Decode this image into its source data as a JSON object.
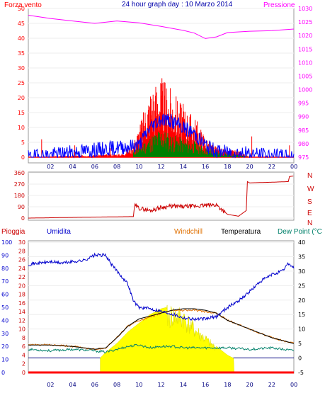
{
  "header": {
    "left_label": "Forza vento",
    "title": "24 hour graph day : 10 Marzo 2014",
    "right_label": "Pressione"
  },
  "colors": {
    "wind": "#ff0000",
    "gust_green": "#008000",
    "gust_blue": "#0000ff",
    "pressure": "#ff00ff",
    "direction": "#cc0000",
    "rain": "#ff0000",
    "humidity": "#0000cc",
    "windchill": "#e07000",
    "temperature": "#000000",
    "dewpoint": "#00806a",
    "solar": "#ffff00"
  },
  "bottom_labels": {
    "rain": "Pioggia",
    "humidity": "Umidita",
    "windchill": "Windchill",
    "temperature": "Temperatura",
    "dewpoint": "Dew Point (°C"
  },
  "direction_letters": [
    "N",
    "W",
    "S",
    "E",
    "N"
  ],
  "x_ticks": [
    "02",
    "04",
    "06",
    "08",
    "10",
    "12",
    "14",
    "16",
    "18",
    "20",
    "22",
    "00"
  ],
  "chart_data": [
    {
      "type": "line",
      "name_hint": "wind-pressure",
      "xlim": [
        0,
        24
      ],
      "ylim_left": [
        0,
        50
      ],
      "ylim_right": [
        975,
        1030
      ],
      "y_ticks_left": [
        "0",
        "5",
        "10",
        "15",
        "20",
        "25",
        "30",
        "35",
        "40",
        "45",
        "50"
      ],
      "y_ticks_right": [
        "975",
        "980",
        "985",
        "990",
        "995",
        "1000",
        "1005",
        "1010",
        "1015",
        "1020",
        "1025",
        "1030"
      ],
      "series": [
        {
          "name": "Pressione",
          "x": [
            0,
            2,
            4,
            6,
            8,
            10,
            12,
            14,
            15,
            16,
            17,
            18,
            20,
            22,
            24
          ],
          "values": [
            1027.5,
            1026.3,
            1025.4,
            1024.5,
            1025.4,
            1024.7,
            1023.4,
            1021.9,
            1020.9,
            1018.9,
            1019.5,
            1021.1,
            1021.6,
            1021.8,
            1022.4
          ]
        },
        {
          "name": "Forza vento",
          "x": [
            0,
            8.5,
            9.5,
            10,
            10.5,
            11,
            11.5,
            12,
            12.5,
            13,
            13.5,
            14,
            14.5,
            15,
            15.5,
            16,
            16.5,
            17,
            18,
            19,
            20,
            24
          ],
          "values": [
            0,
            1,
            4,
            9,
            14,
            20,
            22,
            23,
            21,
            19,
            17,
            15,
            13,
            12,
            9,
            6,
            4,
            3,
            2,
            2,
            0,
            0
          ]
        },
        {
          "name": "gust",
          "x": [
            0,
            9.5,
            10.5,
            11.5,
            12,
            12.5,
            13,
            14,
            15,
            16,
            17,
            20,
            24
          ],
          "values": [
            0,
            2,
            5,
            8,
            9,
            8,
            7,
            6,
            5,
            3,
            2,
            0,
            0
          ]
        },
        {
          "name": "avg",
          "x": [
            0,
            10,
            11,
            12,
            13,
            14,
            15,
            16,
            17,
            24
          ],
          "values": [
            0,
            4,
            10,
            13,
            12,
            10,
            8,
            4,
            2,
            0
          ]
        }
      ]
    },
    {
      "type": "line",
      "name_hint": "wind-direction",
      "xlim": [
        0,
        24
      ],
      "ylim": [
        0,
        360
      ],
      "y_ticks": [
        "0",
        "90",
        "180",
        "270",
        "360"
      ],
      "series": [
        {
          "name": "direction",
          "x": [
            0,
            6.0,
            9.5,
            9.6,
            10,
            11,
            12,
            13,
            14,
            15,
            16,
            17,
            18.0,
            19,
            19.7,
            19.8,
            20.0,
            22,
            23.5,
            23.6,
            24
          ],
          "values": [
            0,
            8,
            12,
            100,
            80,
            60,
            85,
            95,
            90,
            95,
            100,
            105,
            30,
            15,
            60,
            290,
            280,
            285,
            290,
            330,
            335
          ]
        }
      ]
    },
    {
      "type": "line",
      "name_hint": "temperature-humidity",
      "xlim": [
        0,
        24
      ],
      "ylim_left_humidity": [
        0,
        100
      ],
      "ylim_left_rain": [
        0,
        30
      ],
      "ylim_right_temp": [
        -5,
        40
      ],
      "y_ticks_humidity": [
        "0",
        "10",
        "20",
        "30",
        "40",
        "50",
        "60",
        "70",
        "80",
        "90",
        "100"
      ],
      "y_ticks_rain": [
        "0",
        "2",
        "4",
        "6",
        "8",
        "10",
        "12",
        "14",
        "16",
        "18",
        "20",
        "22",
        "24",
        "26",
        "28",
        "30"
      ],
      "y_ticks_temp": [
        "-5",
        "0",
        "5",
        "10",
        "15",
        "20",
        "25",
        "30",
        "35",
        "40"
      ],
      "series": [
        {
          "name": "Umidita",
          "x": [
            0,
            1,
            2,
            3,
            4,
            5,
            6,
            7.0,
            7.5,
            8,
            9,
            9.5,
            10,
            11,
            12,
            13,
            14,
            15,
            16,
            17,
            18,
            19,
            20,
            21,
            22,
            23,
            23.5,
            24
          ],
          "values": [
            83,
            84,
            85,
            84,
            85,
            86,
            90,
            90,
            83,
            78,
            68,
            55,
            50,
            49,
            47,
            45,
            42,
            41,
            41,
            43,
            50,
            55,
            62,
            70,
            75,
            78,
            84,
            80
          ]
        },
        {
          "name": "Temperatura",
          "x": [
            0,
            2,
            4,
            6,
            7,
            8,
            9,
            10,
            11,
            12,
            13,
            14,
            15,
            16,
            17,
            18,
            20,
            22,
            24
          ],
          "values": [
            4.5,
            4.5,
            4,
            3,
            3.5,
            7,
            11,
            13.5,
            14.5,
            15.5,
            16.5,
            17,
            17,
            16.5,
            15.5,
            13,
            10,
            7,
            5
          ]
        },
        {
          "name": "Windchill",
          "x": [
            0,
            2,
            4,
            6,
            7,
            8,
            9,
            10,
            11,
            12,
            13,
            14,
            15,
            16,
            17,
            18,
            20,
            22,
            24
          ],
          "values": [
            4.5,
            4.5,
            4,
            3,
            3.5,
            7,
            11,
            13,
            14,
            15.5,
            16.5,
            16.5,
            16.5,
            16,
            15.5,
            13,
            10,
            7,
            5
          ]
        },
        {
          "name": "Dew Point",
          "x": [
            0,
            2,
            4,
            6,
            7,
            8,
            9,
            10,
            11,
            12,
            13,
            14,
            16,
            18,
            20,
            22,
            24
          ],
          "values": [
            3,
            2.5,
            3,
            2.5,
            2,
            3,
            4,
            4.5,
            3.5,
            4,
            4,
            3.5,
            3.5,
            3.5,
            3,
            3.5,
            2.5
          ]
        },
        {
          "name": "solar",
          "x": [
            0,
            6.5,
            7,
            8,
            9,
            10,
            11,
            12,
            13,
            14,
            15,
            16,
            17,
            18,
            18.5,
            24
          ],
          "values": [
            0,
            0,
            2,
            5,
            9,
            12,
            15,
            17,
            18,
            17,
            12,
            8,
            4,
            1,
            0,
            0
          ]
        },
        {
          "name": "Pioggia",
          "x": [
            0,
            24
          ],
          "values": [
            0,
            0
          ]
        }
      ]
    }
  ]
}
